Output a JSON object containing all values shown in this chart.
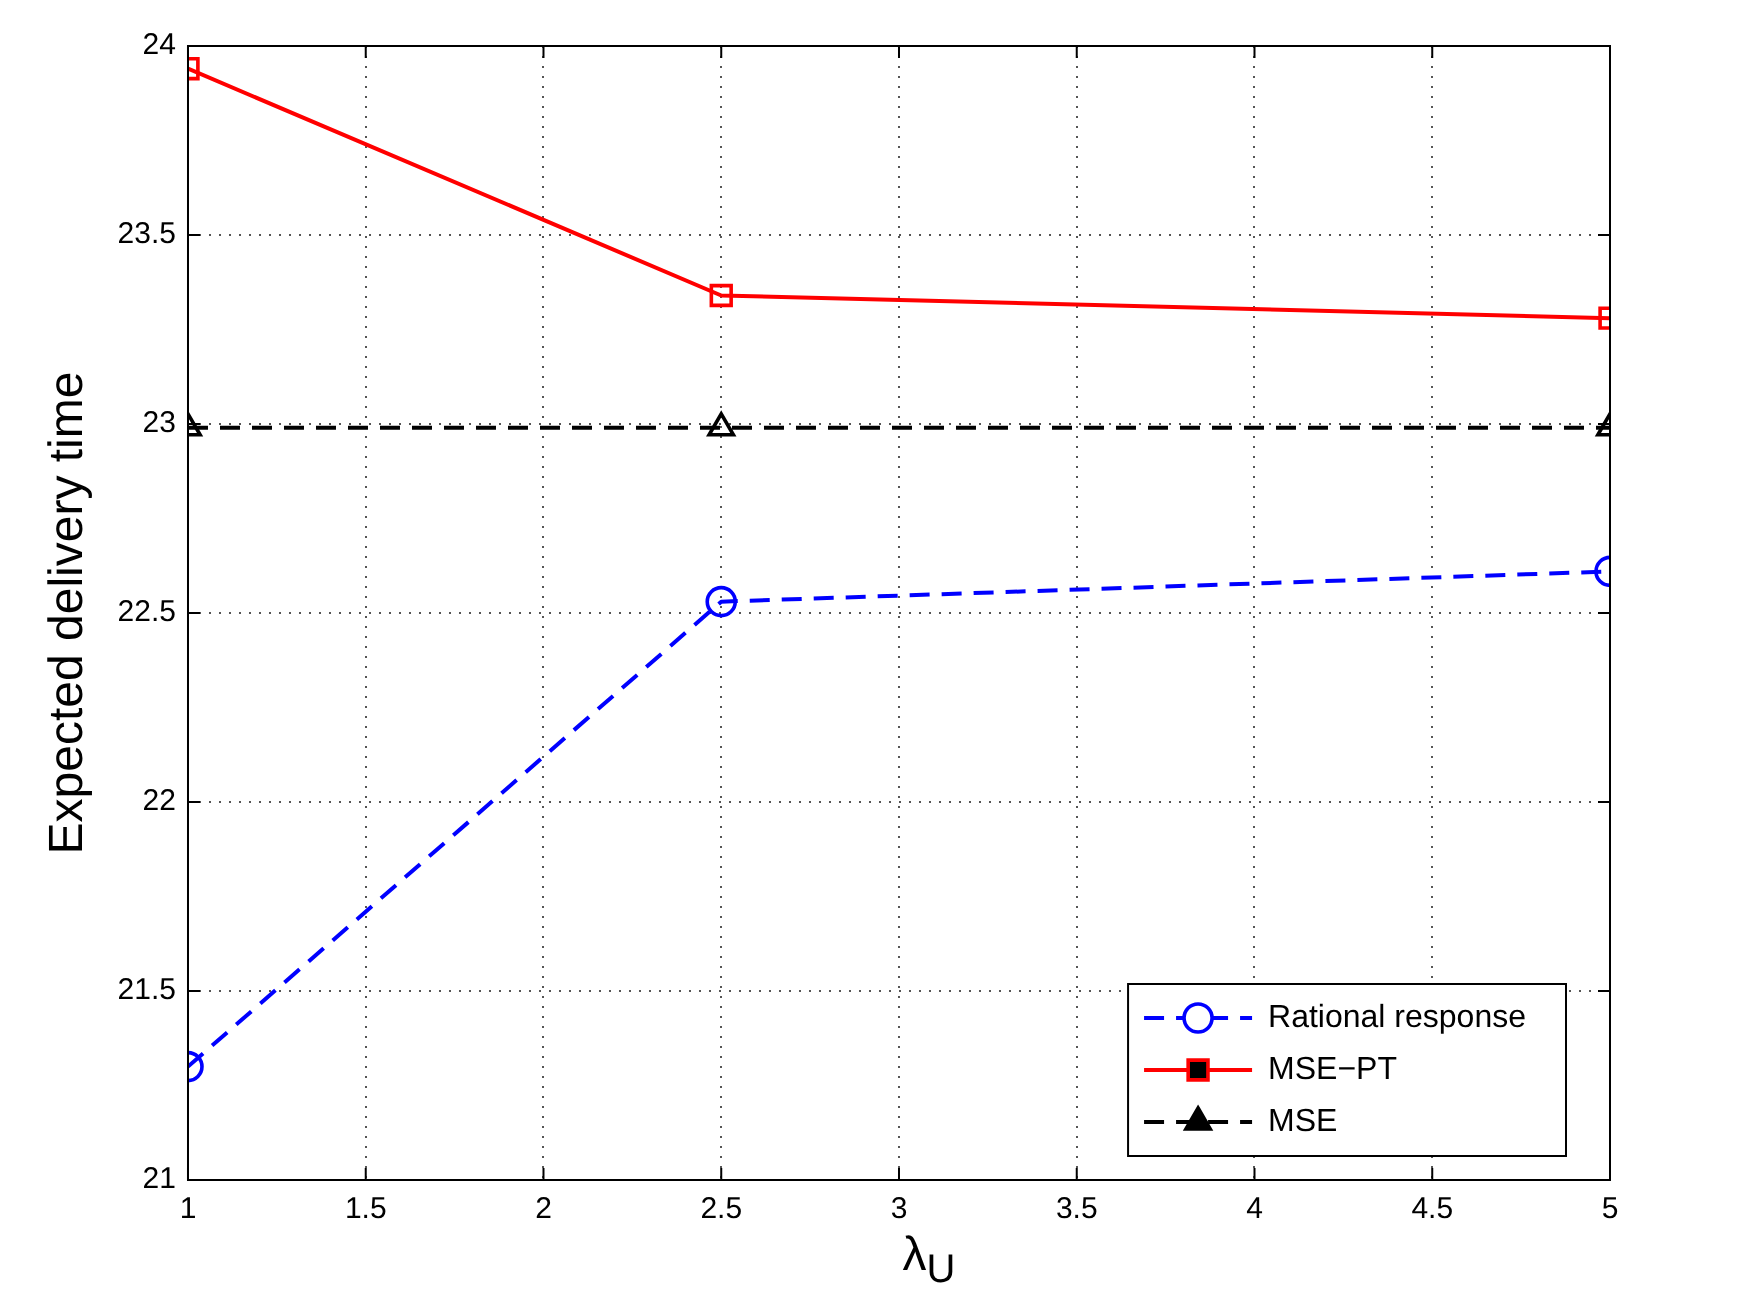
{
  "chart_data": {
    "type": "line",
    "xlabel": "λ$_{U}$",
    "ylabel": "Expected delivery time",
    "x": [
      1,
      2.5,
      5
    ],
    "series": [
      {
        "name": "Rational response",
        "color": "#0000ff",
        "values": [
          21.3,
          22.53,
          22.61
        ],
        "marker": "circle",
        "line_style": "dashed"
      },
      {
        "name": "MSE−PT",
        "color": "#ff0000",
        "values": [
          23.94,
          23.34,
          23.28
        ],
        "marker": "square",
        "line_style": "solid"
      },
      {
        "name": "MSE",
        "color": "#000000",
        "values": [
          22.99,
          22.99,
          22.99
        ],
        "marker": "triangle",
        "line_style": "dashed"
      }
    ],
    "xlim": [
      1,
      5
    ],
    "xticks": [
      1,
      1.5,
      2,
      2.5,
      3,
      3.5,
      4,
      4.5,
      5
    ],
    "ylim": [
      21,
      24
    ],
    "yticks": [
      21,
      21.5,
      22,
      22.5,
      23,
      23.5,
      24
    ],
    "grid": true,
    "legend": "bottom right"
  }
}
